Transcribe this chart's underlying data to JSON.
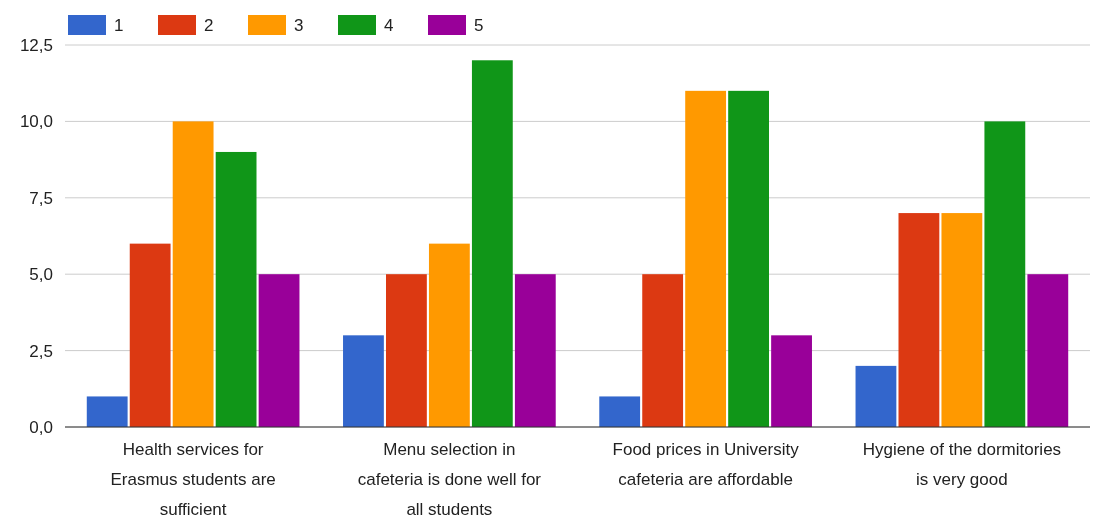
{
  "chart_data": {
    "type": "bar",
    "categories": [
      "Health services for Erasmus students are sufficient",
      "Menu selection in cafeteria is done well for all students",
      "Food prices in University cafeteria are affordable",
      "Hygiene of the dormitories is very good"
    ],
    "series": [
      {
        "name": "1",
        "color": "#3366cc",
        "values": [
          1,
          3,
          1,
          2
        ]
      },
      {
        "name": "2",
        "color": "#dc3912",
        "values": [
          6,
          5,
          5,
          7
        ]
      },
      {
        "name": "3",
        "color": "#ff9900",
        "values": [
          10,
          6,
          11,
          7
        ]
      },
      {
        "name": "4",
        "color": "#109618",
        "values": [
          9,
          12,
          11,
          10
        ]
      },
      {
        "name": "5",
        "color": "#990099",
        "values": [
          5,
          5,
          3,
          5
        ]
      }
    ],
    "ylim": [
      0,
      12.5
    ],
    "yticks": [
      {
        "value": 0,
        "label": "0,0"
      },
      {
        "value": 2.5,
        "label": "2,5"
      },
      {
        "value": 5,
        "label": "5,0"
      },
      {
        "value": 7.5,
        "label": "7,5"
      },
      {
        "value": 10,
        "label": "10,0"
      },
      {
        "value": 12.5,
        "label": "12,5"
      }
    ],
    "grid": "y",
    "legend": "top left"
  }
}
